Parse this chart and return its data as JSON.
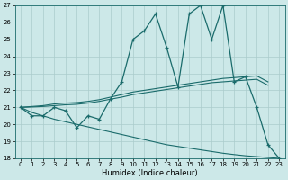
{
  "xlabel": "Humidex (Indice chaleur)",
  "bg_color": "#cce8e8",
  "grid_color": "#aacccc",
  "line_color": "#1a6b6b",
  "x": [
    0,
    1,
    2,
    3,
    4,
    5,
    6,
    7,
    8,
    9,
    10,
    11,
    12,
    13,
    14,
    15,
    16,
    17,
    18,
    19,
    20,
    21,
    22,
    23
  ],
  "y_main": [
    21.0,
    20.5,
    20.5,
    21.0,
    20.8,
    19.8,
    20.5,
    20.3,
    21.5,
    22.5,
    25.0,
    25.5,
    26.5,
    24.5,
    22.2,
    26.5,
    27.0,
    25.0,
    27.0,
    22.5,
    22.8,
    21.0,
    18.8,
    18.0
  ],
  "y_trend1": [
    21.0,
    21.05,
    21.1,
    21.2,
    21.25,
    21.28,
    21.35,
    21.45,
    21.6,
    21.75,
    21.9,
    22.0,
    22.1,
    22.2,
    22.3,
    22.4,
    22.5,
    22.6,
    22.7,
    22.75,
    22.8,
    22.85,
    22.5,
    null
  ],
  "y_trend2": [
    21.0,
    21.02,
    21.05,
    21.1,
    21.15,
    21.18,
    21.25,
    21.35,
    21.48,
    21.6,
    21.75,
    21.85,
    21.95,
    22.05,
    22.15,
    22.25,
    22.35,
    22.45,
    22.5,
    22.55,
    22.6,
    22.65,
    22.3,
    null
  ],
  "y_decline": [
    21.0,
    20.7,
    20.5,
    20.3,
    20.15,
    20.0,
    19.85,
    19.7,
    19.55,
    19.4,
    19.25,
    19.1,
    18.95,
    18.8,
    18.7,
    18.6,
    18.5,
    18.4,
    18.3,
    18.22,
    18.15,
    18.1,
    18.05,
    18.0
  ],
  "ylim": [
    18,
    27
  ],
  "xlim": [
    -0.5,
    23.5
  ],
  "yticks": [
    18,
    19,
    20,
    21,
    22,
    23,
    24,
    25,
    26,
    27
  ],
  "xticks": [
    0,
    1,
    2,
    3,
    4,
    5,
    6,
    7,
    8,
    9,
    10,
    11,
    12,
    13,
    14,
    15,
    16,
    17,
    18,
    19,
    20,
    21,
    22,
    23
  ]
}
